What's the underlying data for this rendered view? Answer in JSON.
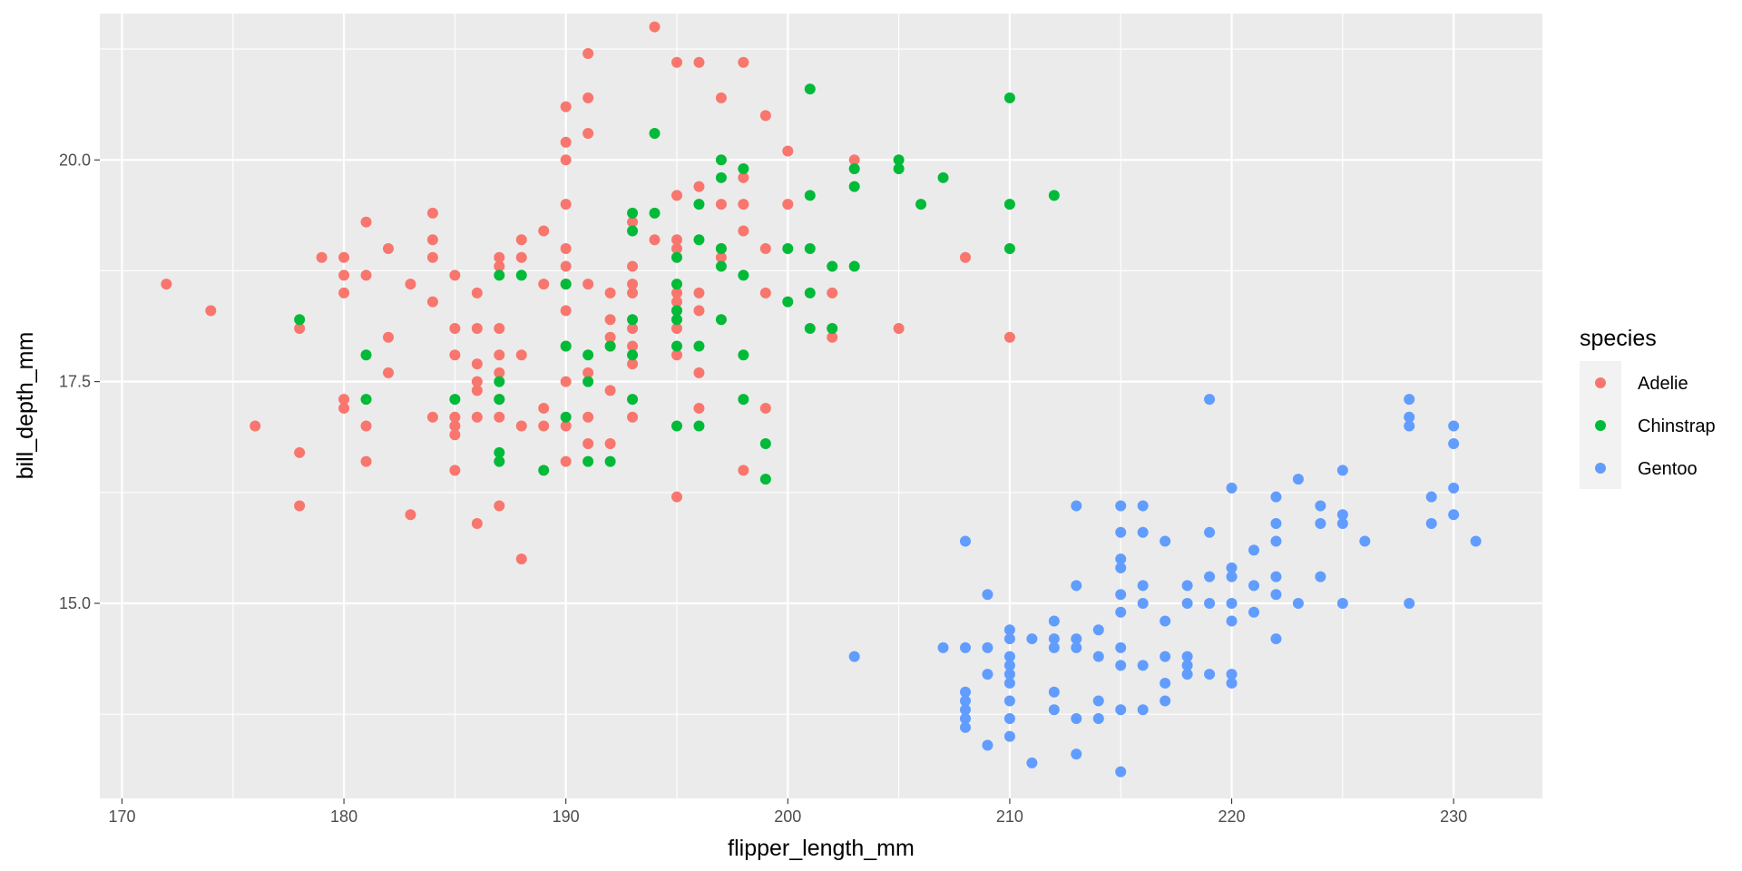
{
  "chart_data": {
    "type": "scatter",
    "title": "",
    "xlabel": "flipper_length_mm",
    "ylabel": "bill_depth_mm",
    "xlim": [
      169,
      234
    ],
    "ylim": [
      12.8,
      21.65
    ],
    "x_ticks": [
      170,
      180,
      190,
      200,
      210,
      220,
      230
    ],
    "y_ticks": [
      15.0,
      17.5,
      20.0
    ],
    "y_tick_labels": [
      "15.0",
      "17.5",
      "20.0"
    ],
    "grid": true,
    "panel_background": "#ebebeb",
    "grid_color": "#ffffff",
    "legend": {
      "title": "species",
      "position": "right",
      "background": "#f2f2f2"
    },
    "series": [
      {
        "name": "Adelie",
        "color": "#f8766d",
        "points": [
          [
            172,
            18.6
          ],
          [
            174,
            18.3
          ],
          [
            176,
            17.0
          ],
          [
            178,
            18.1
          ],
          [
            178,
            16.7
          ],
          [
            178,
            16.1
          ],
          [
            179,
            18.9
          ],
          [
            180,
            18.9
          ],
          [
            180,
            18.7
          ],
          [
            180,
            18.5
          ],
          [
            180,
            17.3
          ],
          [
            180,
            17.2
          ],
          [
            181,
            19.3
          ],
          [
            181,
            18.7
          ],
          [
            181,
            17.0
          ],
          [
            181,
            16.6
          ],
          [
            182,
            19.0
          ],
          [
            182,
            18.0
          ],
          [
            182,
            17.6
          ],
          [
            183,
            18.6
          ],
          [
            183,
            16.0
          ],
          [
            184,
            19.4
          ],
          [
            184,
            19.1
          ],
          [
            184,
            18.9
          ],
          [
            184,
            18.4
          ],
          [
            184,
            17.1
          ],
          [
            185,
            18.7
          ],
          [
            185,
            18.1
          ],
          [
            185,
            17.8
          ],
          [
            185,
            17.1
          ],
          [
            185,
            17.0
          ],
          [
            185,
            16.9
          ],
          [
            185,
            16.5
          ],
          [
            186,
            18.5
          ],
          [
            186,
            18.1
          ],
          [
            186,
            17.7
          ],
          [
            186,
            17.5
          ],
          [
            186,
            17.4
          ],
          [
            186,
            17.1
          ],
          [
            186,
            15.9
          ],
          [
            187,
            18.9
          ],
          [
            187,
            18.8
          ],
          [
            187,
            18.1
          ],
          [
            187,
            17.8
          ],
          [
            187,
            17.6
          ],
          [
            187,
            17.3
          ],
          [
            187,
            17.1
          ],
          [
            187,
            16.1
          ],
          [
            188,
            19.1
          ],
          [
            188,
            18.9
          ],
          [
            188,
            17.8
          ],
          [
            188,
            17.0
          ],
          [
            188,
            15.5
          ],
          [
            189,
            19.2
          ],
          [
            189,
            18.6
          ],
          [
            189,
            17.2
          ],
          [
            189,
            17.0
          ],
          [
            190,
            20.6
          ],
          [
            190,
            20.2
          ],
          [
            190,
            20.0
          ],
          [
            190,
            19.5
          ],
          [
            190,
            19.0
          ],
          [
            190,
            18.8
          ],
          [
            190,
            18.6
          ],
          [
            190,
            18.3
          ],
          [
            190,
            17.9
          ],
          [
            190,
            17.5
          ],
          [
            190,
            17.0
          ],
          [
            190,
            16.6
          ],
          [
            191,
            21.2
          ],
          [
            191,
            20.7
          ],
          [
            191,
            20.3
          ],
          [
            191,
            18.6
          ],
          [
            191,
            17.6
          ],
          [
            191,
            17.1
          ],
          [
            191,
            16.8
          ],
          [
            192,
            18.5
          ],
          [
            192,
            18.2
          ],
          [
            192,
            18.0
          ],
          [
            192,
            17.9
          ],
          [
            192,
            17.4
          ],
          [
            192,
            16.8
          ],
          [
            193,
            19.3
          ],
          [
            193,
            18.8
          ],
          [
            193,
            18.6
          ],
          [
            193,
            18.5
          ],
          [
            193,
            18.1
          ],
          [
            193,
            17.9
          ],
          [
            193,
            17.7
          ],
          [
            193,
            17.1
          ],
          [
            194,
            21.5
          ],
          [
            194,
            19.1
          ],
          [
            195,
            21.1
          ],
          [
            195,
            19.6
          ],
          [
            195,
            19.1
          ],
          [
            195,
            19.0
          ],
          [
            195,
            18.5
          ],
          [
            195,
            18.4
          ],
          [
            195,
            18.3
          ],
          [
            195,
            18.1
          ],
          [
            195,
            17.8
          ],
          [
            195,
            16.2
          ],
          [
            196,
            21.1
          ],
          [
            196,
            19.7
          ],
          [
            196,
            18.5
          ],
          [
            196,
            18.3
          ],
          [
            196,
            17.6
          ],
          [
            196,
            17.2
          ],
          [
            197,
            20.7
          ],
          [
            197,
            19.5
          ],
          [
            197,
            19.0
          ],
          [
            197,
            18.9
          ],
          [
            198,
            21.1
          ],
          [
            198,
            19.8
          ],
          [
            198,
            19.5
          ],
          [
            198,
            19.2
          ],
          [
            198,
            16.5
          ],
          [
            199,
            20.5
          ],
          [
            199,
            19.0
          ],
          [
            199,
            18.5
          ],
          [
            199,
            17.2
          ],
          [
            200,
            20.1
          ],
          [
            200,
            19.5
          ],
          [
            202,
            18.5
          ],
          [
            202,
            18.0
          ],
          [
            203,
            20.0
          ],
          [
            205,
            18.1
          ],
          [
            208,
            18.9
          ],
          [
            210,
            18.0
          ]
        ]
      },
      {
        "name": "Chinstrap",
        "color": "#00ba38",
        "points": [
          [
            178,
            18.2
          ],
          [
            181,
            17.8
          ],
          [
            181,
            17.3
          ],
          [
            185,
            17.3
          ],
          [
            187,
            18.7
          ],
          [
            187,
            17.5
          ],
          [
            187,
            17.3
          ],
          [
            187,
            16.7
          ],
          [
            187,
            16.6
          ],
          [
            188,
            18.7
          ],
          [
            189,
            16.5
          ],
          [
            190,
            18.6
          ],
          [
            190,
            17.9
          ],
          [
            190,
            17.1
          ],
          [
            191,
            17.8
          ],
          [
            191,
            17.5
          ],
          [
            191,
            16.6
          ],
          [
            192,
            17.9
          ],
          [
            192,
            16.6
          ],
          [
            193,
            19.4
          ],
          [
            193,
            19.2
          ],
          [
            193,
            18.2
          ],
          [
            193,
            17.8
          ],
          [
            193,
            17.3
          ],
          [
            194,
            20.3
          ],
          [
            194,
            19.4
          ],
          [
            195,
            18.9
          ],
          [
            195,
            18.6
          ],
          [
            195,
            18.3
          ],
          [
            195,
            18.2
          ],
          [
            195,
            17.9
          ],
          [
            195,
            17.0
          ],
          [
            196,
            19.5
          ],
          [
            196,
            19.1
          ],
          [
            196,
            17.9
          ],
          [
            196,
            17.0
          ],
          [
            197,
            20.0
          ],
          [
            197,
            19.8
          ],
          [
            197,
            19.0
          ],
          [
            197,
            18.8
          ],
          [
            197,
            18.2
          ],
          [
            198,
            19.9
          ],
          [
            198,
            18.7
          ],
          [
            198,
            17.8
          ],
          [
            198,
            17.3
          ],
          [
            199,
            16.8
          ],
          [
            199,
            16.4
          ],
          [
            200,
            19.0
          ],
          [
            200,
            18.4
          ],
          [
            201,
            20.8
          ],
          [
            201,
            19.6
          ],
          [
            201,
            19.0
          ],
          [
            201,
            18.5
          ],
          [
            201,
            18.1
          ],
          [
            202,
            18.8
          ],
          [
            202,
            18.1
          ],
          [
            203,
            19.9
          ],
          [
            203,
            19.7
          ],
          [
            203,
            18.8
          ],
          [
            205,
            20.0
          ],
          [
            205,
            19.9
          ],
          [
            206,
            19.5
          ],
          [
            207,
            19.8
          ],
          [
            210,
            20.7
          ],
          [
            210,
            19.5
          ],
          [
            210,
            19.0
          ],
          [
            212,
            19.6
          ]
        ]
      },
      {
        "name": "Gentoo",
        "color": "#619cff",
        "points": [
          [
            203,
            14.4
          ],
          [
            207,
            14.5
          ],
          [
            208,
            15.7
          ],
          [
            208,
            14.5
          ],
          [
            208,
            14.0
          ],
          [
            208,
            13.9
          ],
          [
            208,
            13.8
          ],
          [
            208,
            13.7
          ],
          [
            208,
            13.6
          ],
          [
            209,
            15.1
          ],
          [
            209,
            14.5
          ],
          [
            209,
            14.2
          ],
          [
            209,
            13.4
          ],
          [
            210,
            14.7
          ],
          [
            210,
            14.6
          ],
          [
            210,
            14.4
          ],
          [
            210,
            14.3
          ],
          [
            210,
            14.2
          ],
          [
            210,
            14.1
          ],
          [
            210,
            13.9
          ],
          [
            210,
            13.7
          ],
          [
            210,
            13.5
          ],
          [
            211,
            14.6
          ],
          [
            211,
            13.2
          ],
          [
            212,
            14.8
          ],
          [
            212,
            14.6
          ],
          [
            212,
            14.5
          ],
          [
            212,
            14.0
          ],
          [
            212,
            13.8
          ],
          [
            213,
            16.1
          ],
          [
            213,
            15.2
          ],
          [
            213,
            14.6
          ],
          [
            213,
            14.5
          ],
          [
            213,
            13.7
          ],
          [
            213,
            13.3
          ],
          [
            214,
            14.7
          ],
          [
            214,
            14.4
          ],
          [
            214,
            13.9
          ],
          [
            214,
            13.7
          ],
          [
            215,
            16.1
          ],
          [
            215,
            15.8
          ],
          [
            215,
            15.5
          ],
          [
            215,
            15.4
          ],
          [
            215,
            15.1
          ],
          [
            215,
            14.9
          ],
          [
            215,
            14.5
          ],
          [
            215,
            14.3
          ],
          [
            215,
            13.8
          ],
          [
            215,
            13.1
          ],
          [
            216,
            16.1
          ],
          [
            216,
            15.8
          ],
          [
            216,
            15.2
          ],
          [
            216,
            15.0
          ],
          [
            216,
            14.3
          ],
          [
            216,
            13.8
          ],
          [
            217,
            15.7
          ],
          [
            217,
            14.8
          ],
          [
            217,
            14.4
          ],
          [
            217,
            14.1
          ],
          [
            217,
            13.9
          ],
          [
            218,
            15.2
          ],
          [
            218,
            15.0
          ],
          [
            218,
            14.4
          ],
          [
            218,
            14.3
          ],
          [
            218,
            14.2
          ],
          [
            219,
            17.3
          ],
          [
            219,
            15.8
          ],
          [
            219,
            15.3
          ],
          [
            219,
            15.0
          ],
          [
            219,
            14.2
          ],
          [
            220,
            16.3
          ],
          [
            220,
            15.4
          ],
          [
            220,
            15.3
          ],
          [
            220,
            15.0
          ],
          [
            220,
            14.8
          ],
          [
            220,
            14.2
          ],
          [
            220,
            14.1
          ],
          [
            221,
            15.6
          ],
          [
            221,
            15.2
          ],
          [
            221,
            14.9
          ],
          [
            222,
            16.2
          ],
          [
            222,
            15.9
          ],
          [
            222,
            15.7
          ],
          [
            222,
            15.3
          ],
          [
            222,
            15.1
          ],
          [
            222,
            14.6
          ],
          [
            223,
            16.4
          ],
          [
            223,
            15.0
          ],
          [
            224,
            16.1
          ],
          [
            224,
            15.9
          ],
          [
            224,
            15.3
          ],
          [
            225,
            16.5
          ],
          [
            225,
            16.0
          ],
          [
            225,
            15.9
          ],
          [
            225,
            15.0
          ],
          [
            226,
            15.7
          ],
          [
            228,
            17.3
          ],
          [
            228,
            17.1
          ],
          [
            228,
            17.0
          ],
          [
            228,
            15.0
          ],
          [
            229,
            16.2
          ],
          [
            229,
            15.9
          ],
          [
            230,
            17.0
          ],
          [
            230,
            16.8
          ],
          [
            230,
            16.3
          ],
          [
            230,
            16.0
          ],
          [
            231,
            15.7
          ]
        ]
      }
    ]
  }
}
